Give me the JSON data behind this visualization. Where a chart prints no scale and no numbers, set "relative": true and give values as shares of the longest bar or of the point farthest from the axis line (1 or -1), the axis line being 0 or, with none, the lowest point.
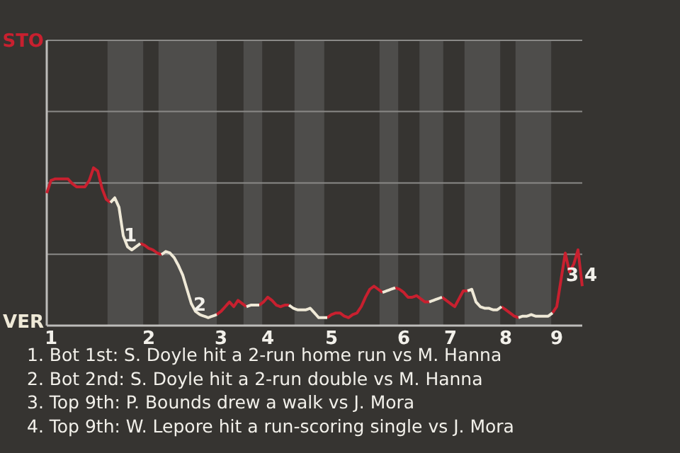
{
  "chart_data": {
    "type": "line",
    "relative": true,
    "categories": [
      null,
      "1",
      null,
      null,
      null,
      null,
      null,
      null,
      null,
      null,
      null,
      null,
      null,
      null,
      null,
      null,
      null,
      null,
      null,
      null,
      null,
      null,
      null,
      null,
      "2",
      null,
      null,
      null,
      null,
      null,
      null,
      null,
      null,
      null,
      null,
      null,
      null,
      null,
      null,
      null,
      null,
      "3",
      null,
      null,
      null,
      null,
      null,
      null,
      null,
      null,
      null,
      null,
      "4",
      null,
      null,
      null,
      null,
      null,
      null,
      null,
      null,
      null,
      null,
      null,
      null,
      null,
      null,
      "5",
      null,
      null,
      null,
      null,
      null,
      null,
      null,
      null,
      null,
      null,
      null,
      null,
      null,
      null,
      null,
      null,
      "6",
      null,
      null,
      null,
      null,
      null,
      null,
      null,
      null,
      null,
      null,
      "7",
      null,
      null,
      null,
      null,
      null,
      null,
      null,
      null,
      null,
      null,
      null,
      null,
      "8",
      null,
      null,
      null,
      null,
      null,
      null,
      null,
      null,
      null,
      null,
      null,
      "9",
      null,
      null,
      null,
      null,
      null,
      null
    ],
    "marker": "none",
    "line_style": "solid",
    "ref_lines": [
      {
        "axis": "y",
        "value": 0.452,
        "color": "#8a8987"
      },
      {
        "axis": "y",
        "value": 0.904,
        "color": "#8a8987"
      },
      {
        "axis": "y",
        "value": 1.357,
        "color": "#8a8987"
      },
      {
        "axis": "y",
        "value": 1.808,
        "color": "#8a8987"
      }
    ],
    "series": [
      {
        "color": "#c8202f",
        "values": [
          0.84,
          0.92,
          0.93,
          0.93,
          0.93,
          0.93,
          0.9,
          0.88,
          0.88,
          0.88,
          0.92,
          1,
          0.98,
          0.87,
          0.8,
          0.78,
          null,
          null,
          null,
          null,
          null,
          null,
          0.52,
          0.51,
          0.49,
          0.48,
          0.46,
          0.45,
          null,
          null,
          null,
          null,
          null,
          null,
          null,
          null,
          null,
          null,
          null,
          null,
          0.07,
          0.09,
          0.12,
          0.15,
          0.12,
          0.16,
          0.14,
          0.12,
          null,
          null,
          0.13,
          0.15,
          0.18,
          0.16,
          0.13,
          0.12,
          0.13,
          0.13,
          null,
          null,
          null,
          null,
          null,
          null,
          null,
          null,
          0.05,
          0.07,
          0.08,
          0.08,
          0.06,
          0.05,
          0.07,
          0.08,
          0.12,
          0.18,
          0.23,
          0.25,
          0.23,
          0.21,
          null,
          null,
          0.24,
          0.23,
          0.21,
          0.18,
          0.18,
          0.19,
          0.17,
          0.15,
          0.15,
          null,
          null,
          0.18,
          0.16,
          0.14,
          0.12,
          0.17,
          0.22,
          0.22,
          null,
          null,
          null,
          null,
          null,
          null,
          null,
          0.12,
          0.1,
          0.08,
          0.06,
          0.05,
          null,
          null,
          null,
          null,
          null,
          null,
          null,
          0.08,
          0.12,
          0.29,
          0.46,
          0.34,
          0.39,
          0.48,
          0.25
        ]
      },
      {
        "color": "#efe9d7",
        "values": [
          null,
          null,
          null,
          null,
          null,
          null,
          null,
          null,
          null,
          null,
          null,
          null,
          null,
          null,
          null,
          0.78,
          0.81,
          0.75,
          0.57,
          0.5,
          0.48,
          0.5,
          0.52,
          null,
          null,
          null,
          null,
          0.45,
          0.47,
          0.46,
          0.43,
          0.38,
          0.32,
          0.23,
          0.14,
          0.09,
          0.07,
          0.06,
          0.05,
          0.06,
          0.07,
          null,
          null,
          null,
          null,
          null,
          null,
          0.12,
          0.13,
          0.13,
          0.13,
          null,
          null,
          null,
          null,
          null,
          null,
          0.13,
          0.11,
          0.1,
          0.1,
          0.1,
          0.11,
          0.08,
          0.05,
          0.05,
          0.05,
          null,
          null,
          null,
          null,
          null,
          null,
          null,
          null,
          null,
          null,
          null,
          null,
          0.21,
          0.22,
          0.23,
          0.24,
          null,
          null,
          null,
          null,
          null,
          null,
          null,
          0.15,
          0.16,
          0.17,
          0.18,
          null,
          null,
          null,
          null,
          null,
          0.22,
          0.23,
          0.15,
          0.12,
          0.11,
          0.11,
          0.1,
          0.1,
          0.12,
          null,
          null,
          null,
          0.05,
          0.06,
          0.06,
          0.07,
          0.06,
          0.06,
          0.06,
          0.06,
          0.08,
          null,
          null,
          null,
          null,
          null,
          null,
          null
        ]
      }
    ],
    "annotations": [
      "STO",
      "VER",
      "1",
      "2",
      "3",
      "4",
      "1. Bot 1st: S. Doyle hit a 2-run home run vs M. Hanna",
      "2. Bot 2nd: S. Doyle hit a 2-run double vs M. Hanna",
      "3. Top 9th: P. Bounds drew a walk vs J. Mora",
      "4. Top 9th: W. Lepore hit a run-scoring single vs J. Mora"
    ]
  }
}
